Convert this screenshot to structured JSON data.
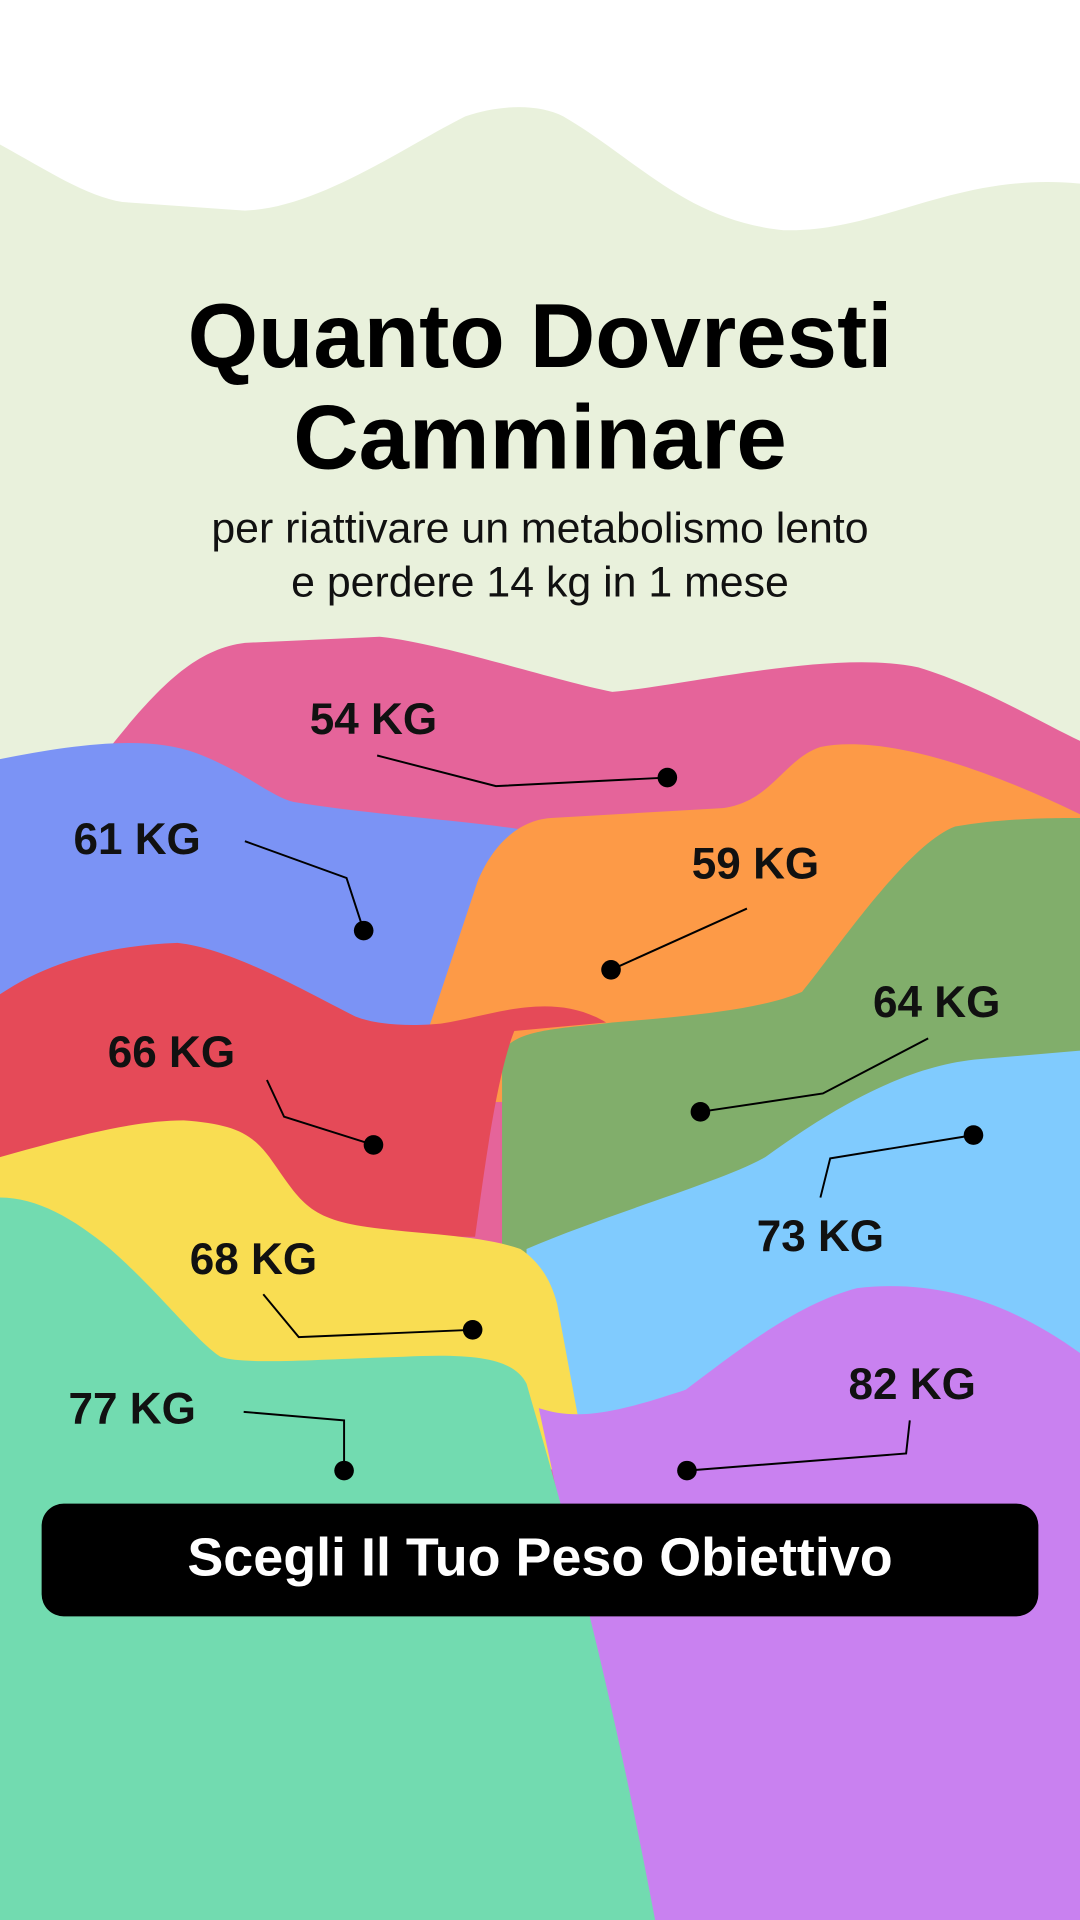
{
  "header": {
    "title": [
      "Quanto Dovresti",
      "Camminare"
    ],
    "subtitle": [
      "per riattivare un metabolismo lento",
      "e perdere 14 kg in 1 mese"
    ]
  },
  "options": [
    {
      "label": "54 KG"
    },
    {
      "label": "61 KG"
    },
    {
      "label": "59 KG"
    },
    {
      "label": "64 KG"
    },
    {
      "label": "66 KG"
    },
    {
      "label": "73 KG"
    },
    {
      "label": "68 KG"
    },
    {
      "label": "77 KG"
    },
    {
      "label": "82 KG"
    }
  ],
  "button": {
    "label": "Scegli Il Tuo Peso Obiettivo"
  }
}
